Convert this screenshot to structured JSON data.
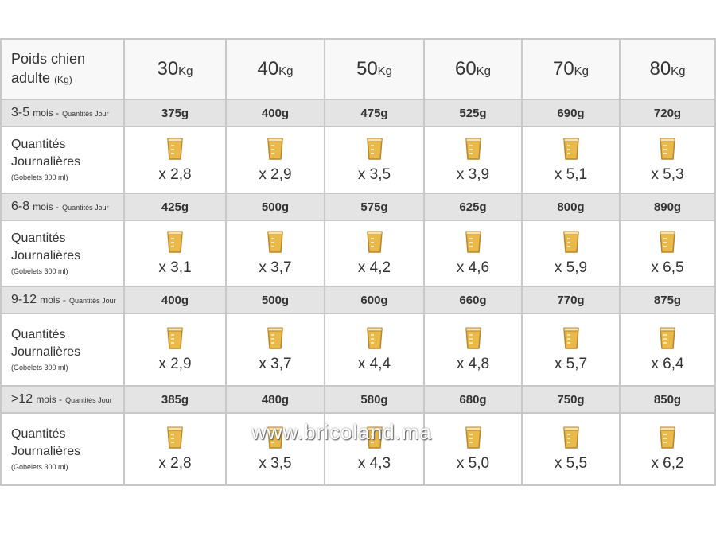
{
  "table": {
    "header": {
      "label": [
        "Poids chien",
        "adulte"
      ],
      "label_unit": "(Kg)",
      "columns": [
        {
          "number": "30",
          "unit": "Kg"
        },
        {
          "number": "40",
          "unit": "Kg"
        },
        {
          "number": "50",
          "unit": "Kg"
        },
        {
          "number": "60",
          "unit": "Kg"
        },
        {
          "number": "70",
          "unit": "Kg"
        },
        {
          "number": "80",
          "unit": "Kg"
        }
      ]
    },
    "groups": [
      {
        "age": {
          "range": "3-5",
          "unit": "mois -",
          "note": "Quantités Jour"
        },
        "portions": [
          "375g",
          "400g",
          "475g",
          "525g",
          "690g",
          "720g"
        ],
        "quantity_label": [
          "Quantités",
          "Journalières"
        ],
        "cup_note": "(Gobelets 300 ml)",
        "cups": [
          "x 2,8",
          "x 2,9",
          "x 3,5",
          "x 3,9",
          "x 5,1",
          "x 5,3"
        ]
      },
      {
        "age": {
          "range": "6-8",
          "unit": "mois -",
          "note": "Quantités Jour"
        },
        "portions": [
          "425g",
          "500g",
          "575g",
          "625g",
          "800g",
          "890g"
        ],
        "quantity_label": [
          "Quantités",
          "Journalières"
        ],
        "cup_note": "(Gobelets 300 ml)",
        "cups": [
          "x 3,1",
          "x 3,7",
          "x 4,2",
          "x 4,6",
          "x 5,9",
          "x 6,5"
        ]
      },
      {
        "age": {
          "range": "9-12",
          "unit": "mois -",
          "note": "Quantités Jour"
        },
        "portions": [
          "400g",
          "500g",
          "600g",
          "660g",
          "770g",
          "875g"
        ],
        "quantity_label": [
          "Quantités",
          "Journalières"
        ],
        "cup_note": "(Gobelets 300 ml)",
        "cups": [
          "x 2,9",
          "x 3,7",
          "x 4,4",
          "x 4,8",
          "x 5,7",
          "x 6,4"
        ]
      },
      {
        "age": {
          "range": ">12",
          "unit": "mois -",
          "note": "Quantités Jour"
        },
        "portions": [
          "385g",
          "480g",
          "580g",
          "680g",
          "750g",
          "850g"
        ],
        "quantity_label": [
          "Quantités",
          "Journalières"
        ],
        "cup_note": "(Gobelets 300 ml)",
        "cups": [
          "x 2,8",
          "x 3,5",
          "x 4,3",
          "x 5,0",
          "x 5,5",
          "x 6,2"
        ]
      }
    ]
  },
  "watermark": "www.bricoland.ma"
}
